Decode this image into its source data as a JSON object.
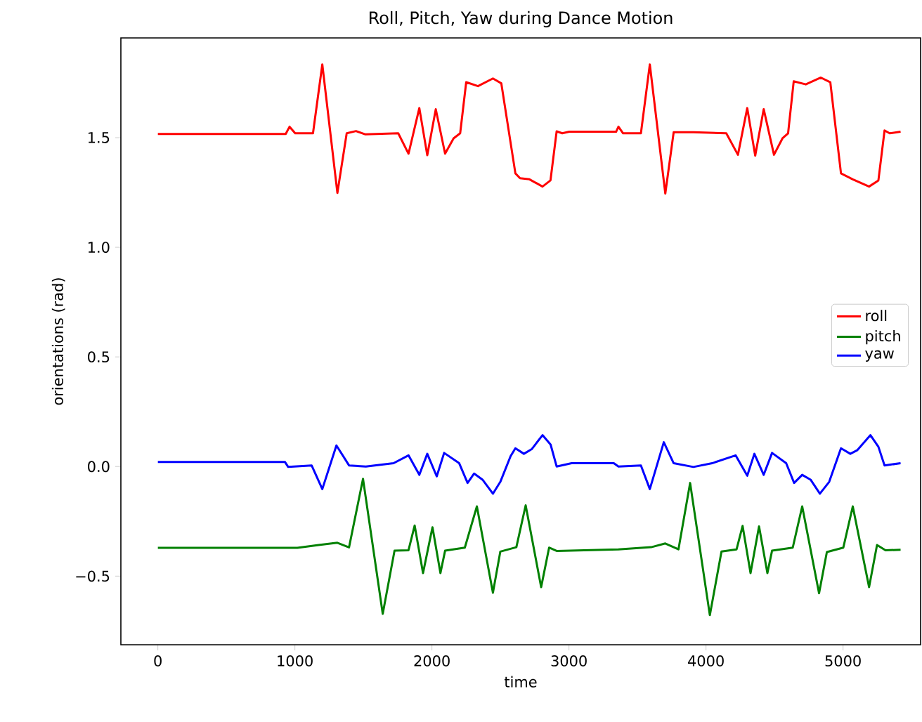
{
  "chart_data": {
    "type": "line",
    "title": "Roll, Pitch, Yaw during Dance Motion",
    "xlabel": "time",
    "ylabel": "orientations (rad)",
    "xlim": [
      -270,
      5566
    ],
    "ylim": [
      -0.813,
      1.955
    ],
    "xticks": [
      0,
      1000,
      2000,
      3000,
      4000,
      5000
    ],
    "yticks": [
      {
        "value": -0.5,
        "label": "−0.5"
      },
      {
        "value": 0,
        "label": "0.0"
      },
      0.5,
      {
        "value": 1,
        "label": "1.0"
      },
      1.5
    ],
    "legend": "center right",
    "grid": false,
    "line_style": "solid",
    "marker": "none",
    "series": [
      {
        "name": "roll",
        "color": "#ff0000",
        "x": [
          0,
          933,
          961,
          1002,
          1132,
          1200,
          1310,
          1378,
          1446,
          1515,
          1754,
          1829,
          1908,
          1966,
          2028,
          2096,
          2158,
          2206,
          2250,
          2336,
          2445,
          2506,
          2609,
          2643,
          2712,
          2807,
          2865,
          2910,
          2951,
          3002,
          3344,
          3361,
          3395,
          3525,
          3590,
          3703,
          3764,
          3908,
          4148,
          4233,
          4301,
          4359,
          4421,
          4496,
          4558,
          4599,
          4640,
          4728,
          4838,
          4907,
          4985,
          5071,
          5190,
          5258,
          5303,
          5340,
          5420
        ],
        "values": [
          1.517,
          1.517,
          1.55,
          1.52,
          1.52,
          1.834,
          1.248,
          1.52,
          1.53,
          1.515,
          1.52,
          1.427,
          1.635,
          1.42,
          1.63,
          1.427,
          1.497,
          1.52,
          1.753,
          1.735,
          1.77,
          1.748,
          1.337,
          1.315,
          1.31,
          1.277,
          1.305,
          1.529,
          1.52,
          1.527,
          1.527,
          1.55,
          1.52,
          1.52,
          1.834,
          1.245,
          1.525,
          1.525,
          1.52,
          1.422,
          1.635,
          1.418,
          1.63,
          1.422,
          1.497,
          1.52,
          1.757,
          1.743,
          1.774,
          1.753,
          1.337,
          1.31,
          1.277,
          1.305,
          1.533,
          1.52,
          1.527
        ]
      },
      {
        "name": "pitch",
        "color": "#008000",
        "x": [
          0,
          927,
          1018,
          1173,
          1310,
          1395,
          1497,
          1641,
          1727,
          1829,
          1874,
          1935,
          2004,
          2062,
          2096,
          2240,
          2328,
          2445,
          2499,
          2616,
          2684,
          2797,
          2855,
          2910,
          3361,
          3600,
          3703,
          3799,
          3884,
          4028,
          4113,
          4223,
          4267,
          4325,
          4387,
          4448,
          4482,
          4633,
          4702,
          4825,
          4882,
          5002,
          5071,
          5190,
          5248,
          5310,
          5420
        ],
        "values": [
          -0.371,
          -0.371,
          -0.371,
          -0.358,
          -0.348,
          -0.369,
          -0.056,
          -0.672,
          -0.384,
          -0.382,
          -0.269,
          -0.486,
          -0.277,
          -0.486,
          -0.384,
          -0.37,
          -0.182,
          -0.576,
          -0.388,
          -0.368,
          -0.177,
          -0.55,
          -0.37,
          -0.385,
          -0.378,
          -0.368,
          -0.351,
          -0.378,
          -0.075,
          -0.678,
          -0.388,
          -0.378,
          -0.271,
          -0.486,
          -0.273,
          -0.486,
          -0.384,
          -0.37,
          -0.182,
          -0.578,
          -0.39,
          -0.37,
          -0.182,
          -0.55,
          -0.358,
          -0.382,
          -0.38
        ]
      },
      {
        "name": "yaw",
        "color": "#0000ff",
        "x": [
          0,
          927,
          951,
          1122,
          1200,
          1303,
          1395,
          1518,
          1720,
          1829,
          1908,
          1966,
          2035,
          2089,
          2199,
          2260,
          2308,
          2369,
          2445,
          2499,
          2574,
          2609,
          2671,
          2728,
          2807,
          2866,
          2910,
          3019,
          3327,
          3361,
          3525,
          3590,
          3692,
          3764,
          3908,
          4045,
          4216,
          4301,
          4353,
          4421,
          4482,
          4585,
          4643,
          4702,
          4763,
          4831,
          4899,
          4985,
          5053,
          5105,
          5200,
          5258,
          5303,
          5420
        ],
        "values": [
          0.021,
          0.021,
          -0.002,
          0.005,
          -0.103,
          0.096,
          0.005,
          0.0,
          0.015,
          0.051,
          -0.038,
          0.058,
          -0.045,
          0.062,
          0.015,
          -0.075,
          -0.032,
          -0.06,
          -0.124,
          -0.07,
          0.047,
          0.083,
          0.058,
          0.079,
          0.143,
          0.1,
          0.0,
          0.015,
          0.015,
          0.0,
          0.005,
          -0.103,
          0.111,
          0.015,
          -0.002,
          0.015,
          0.051,
          -0.042,
          0.058,
          -0.038,
          0.062,
          0.015,
          -0.075,
          -0.038,
          -0.06,
          -0.124,
          -0.07,
          0.083,
          0.058,
          0.075,
          0.143,
          0.09,
          0.005,
          0.015
        ]
      }
    ]
  }
}
